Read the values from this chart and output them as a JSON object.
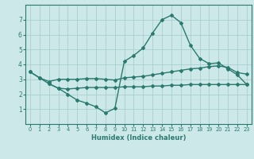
{
  "line1_x": [
    0,
    1,
    2,
    3,
    4,
    5,
    6,
    7,
    8,
    9,
    10,
    11,
    12,
    13,
    14,
    15,
    16,
    17,
    18,
    19,
    20,
    21,
    22,
    23
  ],
  "line1_y": [
    3.5,
    3.1,
    2.7,
    2.4,
    2.0,
    1.6,
    1.4,
    1.15,
    0.75,
    1.05,
    4.2,
    4.6,
    5.1,
    6.1,
    7.0,
    7.3,
    6.8,
    5.3,
    4.4,
    4.05,
    4.1,
    3.7,
    3.3,
    2.65
  ],
  "line2_x": [
    0,
    1,
    2,
    3,
    4,
    5,
    6,
    7,
    8,
    9,
    10,
    11,
    12,
    13,
    14,
    15,
    16,
    17,
    18,
    19,
    20,
    21,
    22,
    23
  ],
  "line2_y": [
    3.5,
    3.1,
    2.85,
    3.0,
    3.0,
    3.0,
    3.05,
    3.05,
    3.0,
    2.95,
    3.1,
    3.15,
    3.2,
    3.3,
    3.4,
    3.5,
    3.6,
    3.7,
    3.75,
    3.85,
    3.9,
    3.8,
    3.45,
    3.35
  ],
  "line3_x": [
    2,
    3,
    4,
    5,
    6,
    7,
    8,
    9,
    10,
    11,
    12,
    13,
    14,
    15,
    16,
    17,
    18,
    19,
    20,
    21,
    22,
    23
  ],
  "line3_y": [
    2.7,
    2.4,
    2.35,
    2.4,
    2.45,
    2.45,
    2.45,
    2.45,
    2.5,
    2.5,
    2.5,
    2.55,
    2.55,
    2.6,
    2.6,
    2.65,
    2.65,
    2.65,
    2.65,
    2.65,
    2.65,
    2.65
  ],
  "color": "#2a7a6f",
  "bg_color": "#cce8e8",
  "grid_color": "#aacece",
  "xlabel": "Humidex (Indice chaleur)",
  "xlim": [
    -0.5,
    23.5
  ],
  "ylim": [
    0,
    8
  ],
  "xticks": [
    0,
    1,
    2,
    3,
    4,
    5,
    6,
    7,
    8,
    9,
    10,
    11,
    12,
    13,
    14,
    15,
    16,
    17,
    18,
    19,
    20,
    21,
    22,
    23
  ],
  "yticks": [
    1,
    2,
    3,
    4,
    5,
    6,
    7
  ],
  "marker": "D",
  "markersize": 2.0,
  "linewidth": 1.0
}
